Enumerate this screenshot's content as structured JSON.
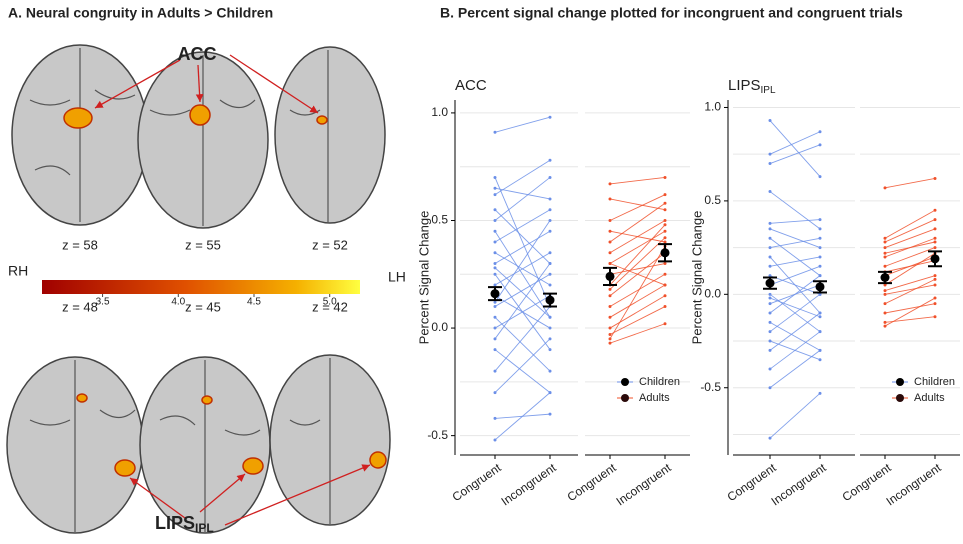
{
  "panel_a": {
    "title": "A. Neural congruity in Adults > Children",
    "label_acc": "ACC",
    "label_lips": "LIPS",
    "label_lips_sub": "IPL",
    "z_top": [
      "z = 58",
      "z = 55",
      "z = 52"
    ],
    "z_bottom": [
      "z = 48",
      "z = 45",
      "z = 42"
    ],
    "left_side": "RH",
    "right_side": "LH",
    "colorbar": {
      "lim": [
        3.1,
        5.2
      ],
      "ticks": [
        3.5,
        {
          "value": 4,
          "label": "4.0"
        },
        4.5,
        {
          "value": 5,
          "label": "5.0"
        }
      ]
    }
  },
  "panel_b_title": "B. Percent signal change plotted for incongruent and congruent trials",
  "chart_data": [
    {
      "type": "paired-line",
      "title": "ACC",
      "y_label": "Percent Signal Change",
      "categories": [
        "Congruent",
        "Incongruent"
      ],
      "ylim": [
        -0.59,
        1.06
      ],
      "yticks": [
        -0.5,
        {
          "value": 0,
          "label": "0.0"
        },
        0.5,
        {
          "value": 1,
          "label": "1.0"
        }
      ],
      "minor_grid": [
        -0.25,
        0.25,
        0.75
      ],
      "legend": "lower right",
      "groups": [
        {
          "name": "Children",
          "color": "#6b8fe8",
          "marker_color": "#000000",
          "means": [
            0.16,
            0.13
          ],
          "errors": [
            0.03,
            0.03
          ],
          "subjects": [
            [
              0.91,
              0.98
            ],
            [
              0.7,
              0.1
            ],
            [
              0.62,
              0.78
            ],
            [
              0.55,
              0.3
            ],
            [
              0.5,
              0.7
            ],
            [
              0.45,
              0.05
            ],
            [
              0.4,
              0.55
            ],
            [
              0.35,
              0.2
            ],
            [
              0.3,
              0.45
            ],
            [
              0.25,
              -0.1
            ],
            [
              0.2,
              0.35
            ],
            [
              0.15,
              0.0
            ],
            [
              0.1,
              0.25
            ],
            [
              0.05,
              -0.2
            ],
            [
              0.0,
              0.15
            ],
            [
              -0.05,
              0.3
            ],
            [
              -0.1,
              -0.3
            ],
            [
              -0.2,
              0.1
            ],
            [
              -0.3,
              -0.05
            ],
            [
              -0.42,
              -0.4
            ],
            [
              -0.52,
              -0.3
            ],
            [
              0.65,
              0.6
            ],
            [
              0.28,
              0.05
            ],
            [
              0.12,
              0.5
            ]
          ]
        },
        {
          "name": "Adults",
          "color": "#f0502a",
          "marker_color": "#2a0a0a",
          "means": [
            0.24,
            0.35
          ],
          "errors": [
            0.04,
            0.04
          ],
          "subjects": [
            [
              0.67,
              0.7
            ],
            [
              0.6,
              0.55
            ],
            [
              0.5,
              0.62
            ],
            [
              0.45,
              0.4
            ],
            [
              0.4,
              0.58
            ],
            [
              0.35,
              0.5
            ],
            [
              0.3,
              0.45
            ],
            [
              0.25,
              0.3
            ],
            [
              0.2,
              0.48
            ],
            [
              0.15,
              0.35
            ],
            [
              0.1,
              0.25
            ],
            [
              0.05,
              0.2
            ],
            [
              0.0,
              0.15
            ],
            [
              -0.03,
              0.1
            ],
            [
              -0.07,
              0.02
            ],
            [
              0.3,
              0.2
            ],
            [
              0.18,
              0.42
            ],
            [
              -0.05,
              0.38
            ]
          ]
        }
      ]
    },
    {
      "type": "paired-line",
      "title": "LIPS",
      "title_subscript": "IPL",
      "y_label": "Percent Signal Change",
      "categories": [
        "Congruent",
        "Incongruent"
      ],
      "ylim": [
        -0.86,
        1.04
      ],
      "yticks": [
        -0.5,
        {
          "value": 0,
          "label": "0.0"
        },
        0.5,
        {
          "value": 1,
          "label": "1.0"
        }
      ],
      "minor_grid": [
        -0.75,
        -0.25,
        0.25,
        0.75
      ],
      "legend": "lower right",
      "groups": [
        {
          "name": "Children",
          "color": "#6b8fe8",
          "marker_color": "#000000",
          "means": [
            0.06,
            0.04
          ],
          "errors": [
            0.03,
            0.03
          ],
          "subjects": [
            [
              0.93,
              0.63
            ],
            [
              0.75,
              0.87
            ],
            [
              0.7,
              0.8
            ],
            [
              0.55,
              0.35
            ],
            [
              0.38,
              0.4
            ],
            [
              0.3,
              0.1
            ],
            [
              0.25,
              0.3
            ],
            [
              0.2,
              -0.1
            ],
            [
              0.15,
              0.2
            ],
            [
              0.1,
              0.0
            ],
            [
              0.05,
              0.15
            ],
            [
              0.0,
              -0.2
            ],
            [
              -0.05,
              0.05
            ],
            [
              -0.1,
              0.1
            ],
            [
              -0.15,
              -0.3
            ],
            [
              -0.2,
              0.0
            ],
            [
              -0.25,
              -0.35
            ],
            [
              -0.3,
              -0.1
            ],
            [
              -0.4,
              -0.2
            ],
            [
              -0.5,
              -0.3
            ],
            [
              -0.77,
              -0.53
            ],
            [
              0.35,
              0.25
            ],
            [
              -0.02,
              -0.12
            ]
          ]
        },
        {
          "name": "Adults",
          "color": "#f0502a",
          "marker_color": "#2a0a0a",
          "means": [
            0.09,
            0.19
          ],
          "errors": [
            0.03,
            0.04
          ],
          "subjects": [
            [
              0.57,
              0.62
            ],
            [
              0.3,
              0.45
            ],
            [
              0.28,
              0.4
            ],
            [
              0.25,
              0.35
            ],
            [
              0.2,
              0.3
            ],
            [
              0.15,
              0.25
            ],
            [
              0.1,
              0.2
            ],
            [
              0.05,
              0.22
            ],
            [
              0.02,
              0.1
            ],
            [
              0.0,
              0.05
            ],
            [
              -0.05,
              0.08
            ],
            [
              -0.1,
              -0.05
            ],
            [
              -0.15,
              -0.12
            ],
            [
              0.12,
              0.18
            ],
            [
              0.22,
              0.28
            ],
            [
              -0.17,
              -0.02
            ]
          ]
        }
      ]
    }
  ]
}
